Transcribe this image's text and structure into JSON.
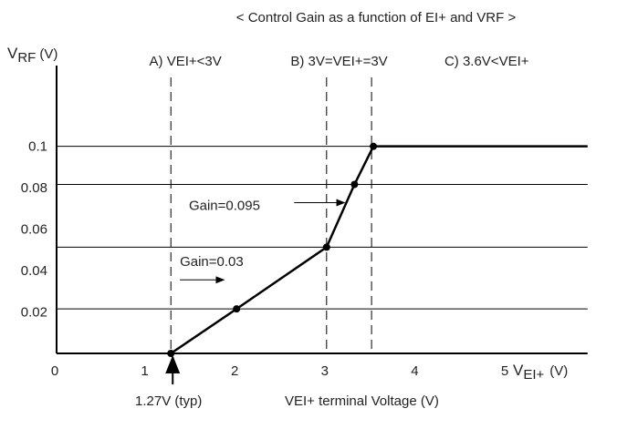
{
  "chart_data": {
    "type": "line",
    "title": "< Control Gain as a function of EI+ and VRF >",
    "y_symbol": {
      "main": "V",
      "sub": "RF",
      "unit": "(V)"
    },
    "x_symbol": {
      "main": "V",
      "sub": "EI+",
      "unit": "(V)"
    },
    "xlabel": "VEI+ terminal Voltage (V)",
    "x": [
      1.27,
      2,
      3,
      3.31,
      3.52,
      5.9
    ],
    "series": [
      {
        "values": [
          0,
          0.0215,
          0.0513,
          0.0816,
          0.1,
          0.1
        ],
        "color": "#000000",
        "markers": [
          true,
          true,
          true,
          true,
          true,
          false
        ]
      }
    ],
    "xlim": [
      0,
      5.9
    ],
    "ylim": [
      0,
      0.139
    ],
    "xticks": [
      0,
      1,
      2,
      3,
      4,
      5
    ],
    "yticks": [
      0.02,
      0.04,
      0.06,
      0.08,
      0.1
    ],
    "hlines": [
      0.0215,
      0.0513,
      0.0816,
      0.1
    ],
    "vlines": [
      1.27,
      3,
      3.5
    ],
    "regions": [
      {
        "label": "A) VEI+<3V",
        "x": 1.03
      },
      {
        "label": "B) 3V=VEI+=3V",
        "x": 2.6
      },
      {
        "label": "C) 3.6V<VEI+",
        "x": 4.31
      }
    ],
    "annotations": [
      {
        "text": "Gain=0.095",
        "x": 1.47,
        "y": 0.071,
        "arrow": [
          2.64,
          3.2,
          0.0728
        ]
      },
      {
        "text": "Gain=0.03",
        "x": 1.37,
        "y": 0.044,
        "arrow": [
          1.37,
          1.86,
          0.0355
        ]
      }
    ],
    "start_label": {
      "text": "1.27V (typ)"
    }
  }
}
